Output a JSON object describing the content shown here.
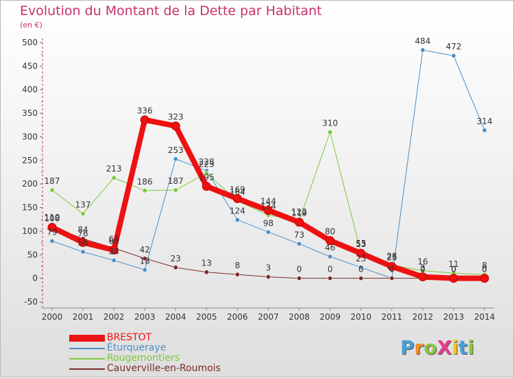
{
  "title": "Evolution du Montant de la Dette par Habitant",
  "subtitle": "(en €)",
  "logo": {
    "text": "ProXiti",
    "letters": [
      {
        "ch": "P",
        "color": "#4aa0d8"
      },
      {
        "ch": "r",
        "color": "#f08c2a"
      },
      {
        "ch": "o",
        "color": "#8cc63e"
      },
      {
        "ch": "X",
        "color": "#e83e8c"
      },
      {
        "ch": "i",
        "color": "#f6c21a"
      },
      {
        "ch": "t",
        "color": "#4aa0d8"
      },
      {
        "ch": "i",
        "color": "#8cc63e"
      }
    ]
  },
  "chart_data": {
    "type": "line",
    "title": "Evolution du Montant de la Dette par Habitant",
    "subtitle": "(en €)",
    "x": [
      2000,
      2001,
      2002,
      2003,
      2004,
      2005,
      2006,
      2007,
      2008,
      2009,
      2010,
      2011,
      2012,
      2013,
      2014
    ],
    "ylim": [
      -50,
      500
    ],
    "yticks": [
      -50,
      0,
      50,
      100,
      150,
      200,
      250,
      300,
      350,
      400,
      450,
      500
    ],
    "grid": false,
    "legend_position": "bottom-left",
    "series": [
      {
        "name": "BRESTOT",
        "color": "#ee1111",
        "width": 8,
        "values": [
          108,
          76,
          60,
          336,
          323,
          195,
          169,
          144,
          119,
          80,
          53,
          25,
          3,
          0,
          0
        ],
        "labels": [
          "108",
          "76",
          "60",
          "336",
          "323",
          "195",
          "169",
          "144",
          "119",
          "80",
          "53",
          "25",
          "3",
          "0",
          "0"
        ]
      },
      {
        "name": "Éturqueraye",
        "color": "#4a8ec9",
        "width": 1,
        "values": [
          79,
          56,
          38,
          18,
          253,
          228,
          124,
          98,
          73,
          46,
          23,
          0,
          484,
          472,
          314
        ],
        "labels": [
          "79",
          "56",
          "38",
          "18",
          "253",
          "228",
          "124",
          "98",
          "73",
          "46",
          "23",
          "0",
          "484",
          "472",
          "314"
        ]
      },
      {
        "name": "Rougemontiers",
        "color": "#7cc83a",
        "width": 1,
        "values": [
          187,
          137,
          213,
          186,
          187,
          223,
          164,
          134,
          122,
          310,
          55,
          28,
          16,
          11,
          8
        ],
        "labels": [
          "187",
          "137",
          "213",
          "186",
          "187",
          "223",
          "164",
          "134",
          "122",
          "310",
          "55",
          "28",
          "16",
          "11",
          "8"
        ]
      },
      {
        "name": "Cauverville-en-Roumois",
        "color": "#7a2a2a",
        "width": 1,
        "values": [
          110,
          84,
          64,
          42,
          23,
          13,
          8,
          3,
          0,
          0,
          0,
          0,
          0,
          0,
          0
        ],
        "labels": [
          "110",
          "84",
          "64",
          "42",
          "23",
          "13",
          "8",
          "3",
          "0",
          "0",
          "0",
          "0",
          "0",
          "0",
          "0"
        ]
      }
    ]
  }
}
